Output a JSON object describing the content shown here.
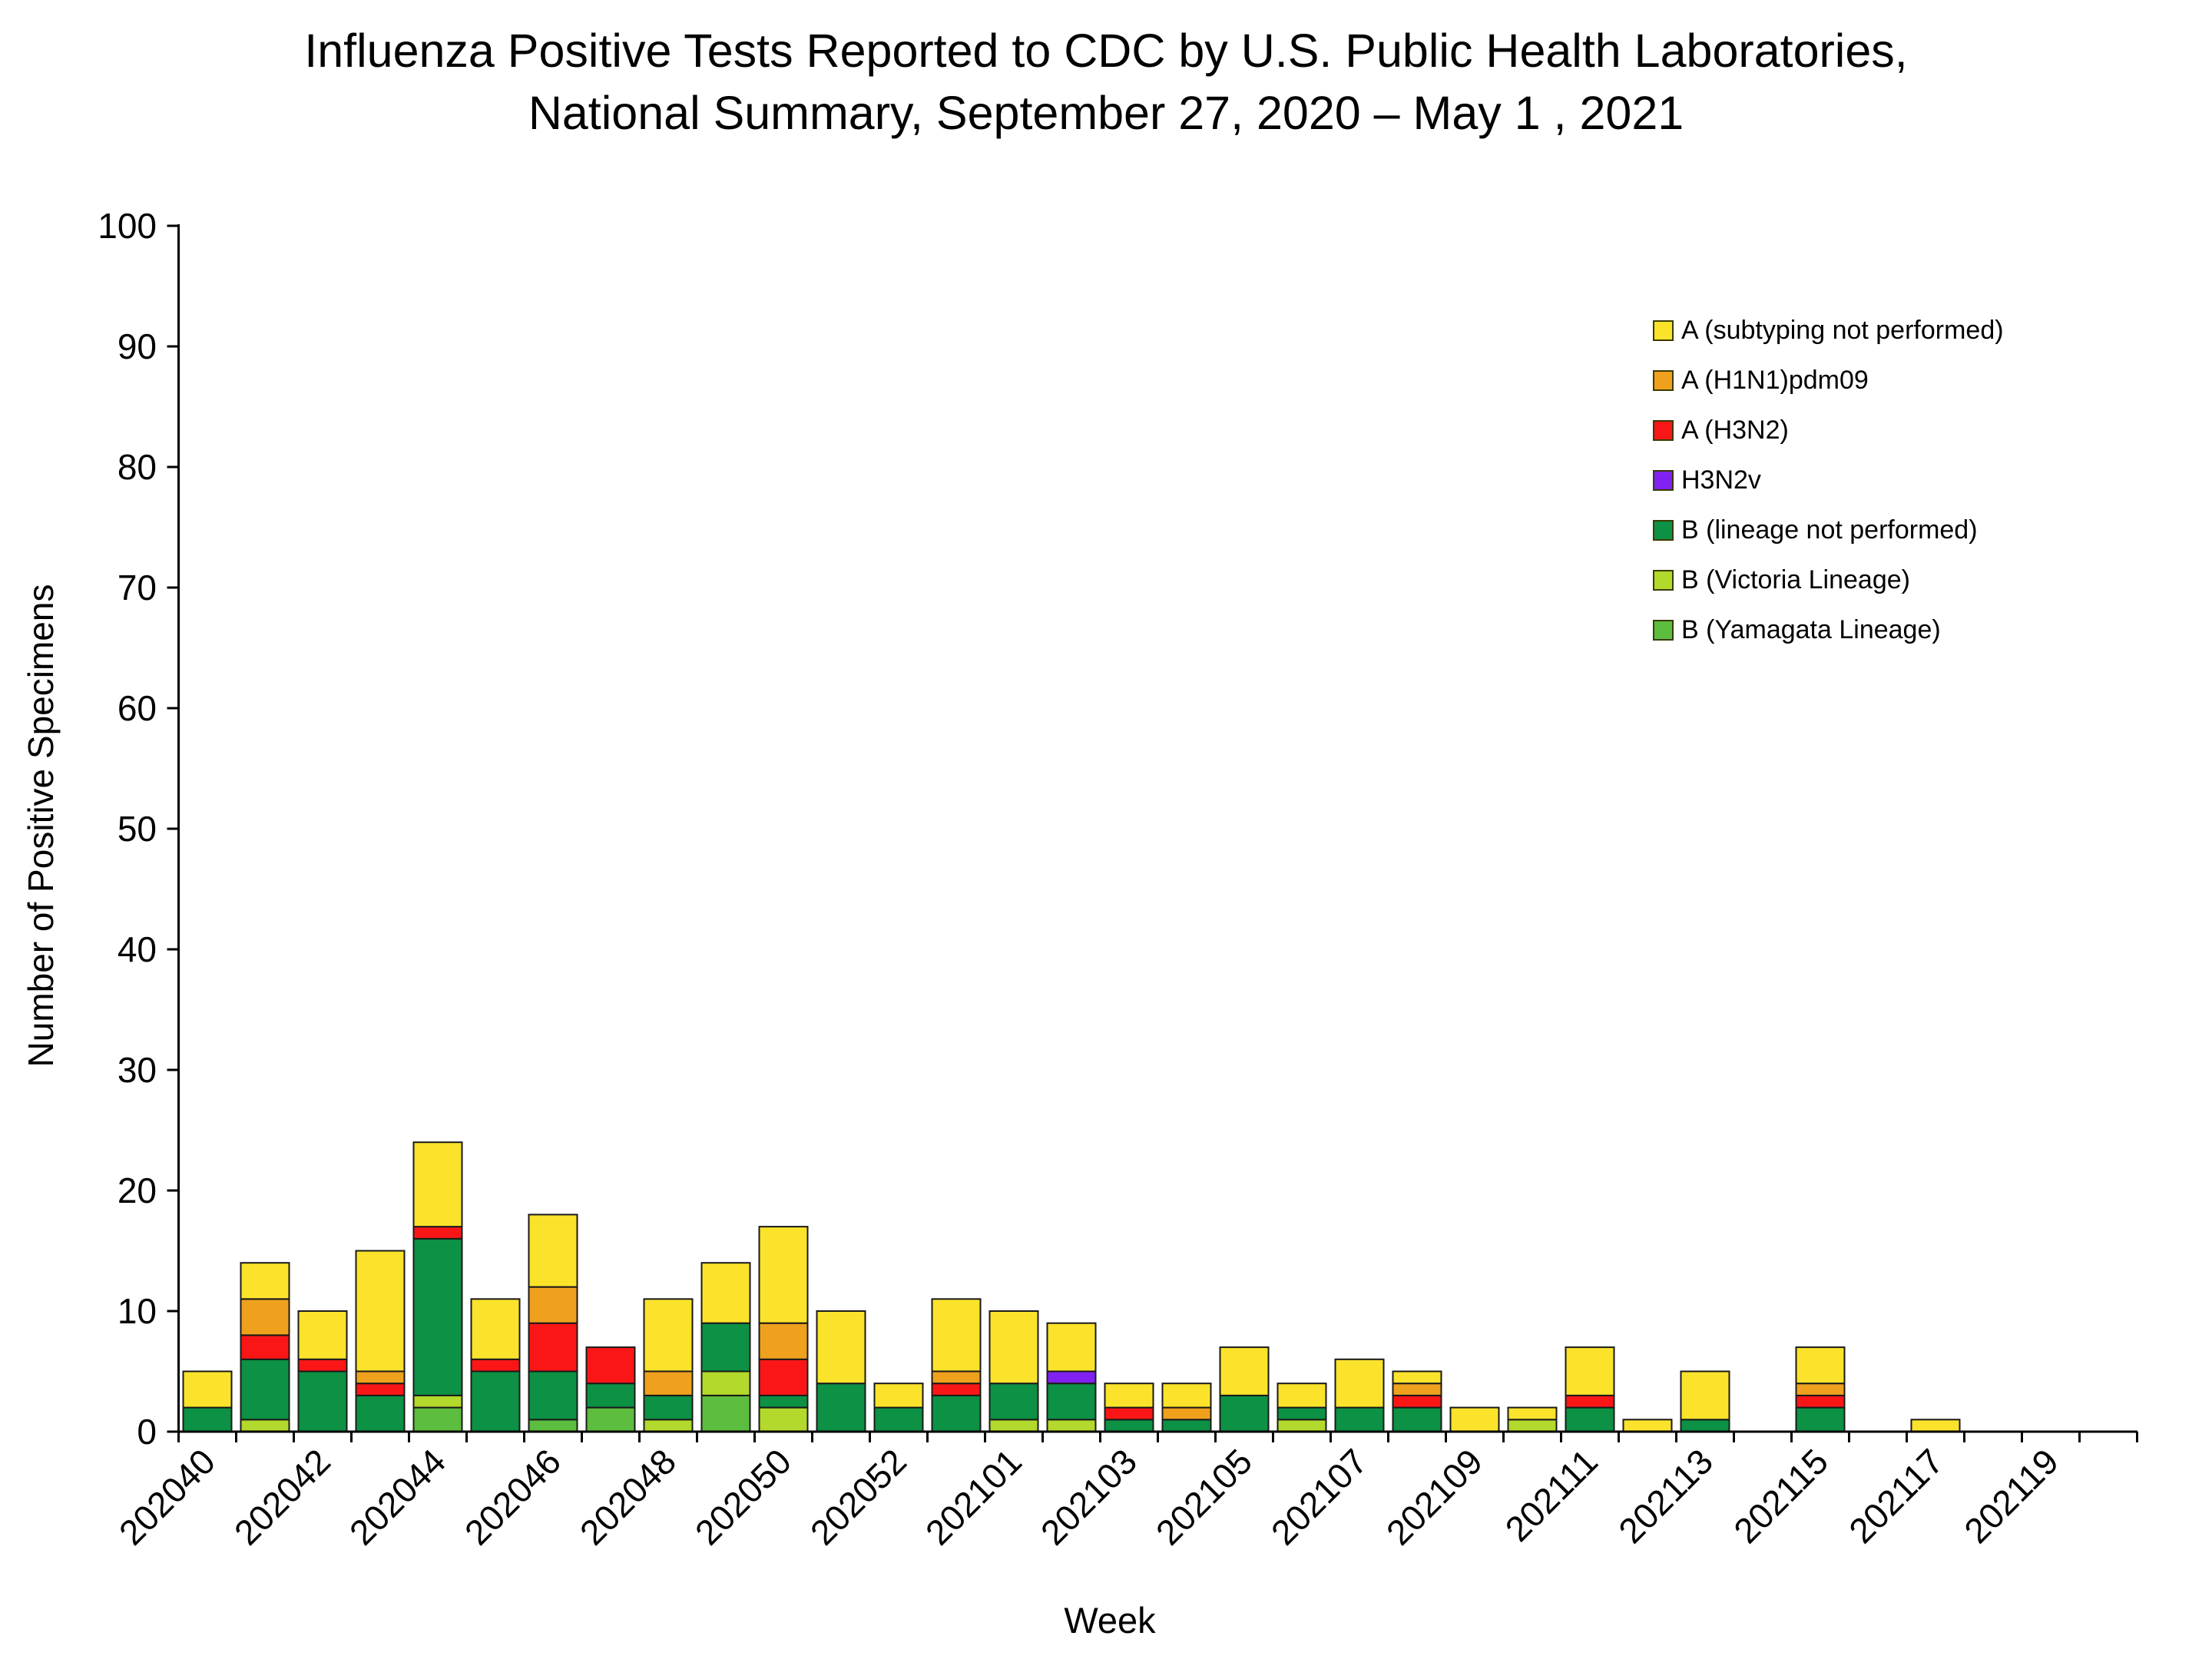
{
  "title": {
    "line1": "Influenza Positive Tests Reported to CDC by U.S. Public Health Laboratories,",
    "line2": "National Summary, September 27, 2020 – May 1 , 2021"
  },
  "chart_data": {
    "type": "bar",
    "stacked": true,
    "title": "Influenza Positive Tests Reported to CDC by U.S. Public Health Laboratories, National Summary, September 27, 2020 – May 1 , 2021",
    "xlabel": "Week",
    "ylabel": "Number of Positive Specimens",
    "ylim": [
      0,
      100
    ],
    "ytick_step": 10,
    "grid": false,
    "legend_position": "upper-right",
    "x_label_every": 2,
    "categories": [
      "202040",
      "202041",
      "202042",
      "202043",
      "202044",
      "202045",
      "202046",
      "202047",
      "202048",
      "202049",
      "202050",
      "202051",
      "202052",
      "202053",
      "202101",
      "202102",
      "202103",
      "202104",
      "202105",
      "202106",
      "202107",
      "202108",
      "202109",
      "202110",
      "202111",
      "202112",
      "202113",
      "202114",
      "202115",
      "202116",
      "202117",
      "202118",
      "202119",
      "202120"
    ],
    "series": [
      {
        "name": "B (Yamagata Lineage)",
        "color": "#5cbd3e",
        "values": [
          0,
          0,
          0,
          0,
          2,
          0,
          1,
          2,
          0,
          3,
          0,
          0,
          0,
          0,
          0,
          0,
          0,
          0,
          0,
          0,
          0,
          0,
          0,
          0,
          0,
          0,
          0,
          0,
          0,
          0,
          0,
          0,
          0,
          0
        ]
      },
      {
        "name": "B (Victoria Lineage)",
        "color": "#b2d92b",
        "values": [
          0,
          1,
          0,
          0,
          1,
          0,
          0,
          0,
          1,
          2,
          2,
          0,
          0,
          0,
          1,
          1,
          0,
          0,
          0,
          1,
          0,
          0,
          0,
          1,
          0,
          0,
          0,
          0,
          0,
          0,
          0,
          0,
          0,
          0
        ]
      },
      {
        "name": "B (lineage not performed)",
        "color": "#0c9145",
        "values": [
          2,
          5,
          5,
          3,
          13,
          5,
          4,
          2,
          2,
          4,
          1,
          4,
          2,
          3,
          3,
          3,
          1,
          1,
          3,
          1,
          2,
          2,
          0,
          0,
          2,
          0,
          1,
          0,
          2,
          0,
          0,
          0,
          0,
          0
        ]
      },
      {
        "name": "H3N2v",
        "color": "#8121f1",
        "values": [
          0,
          0,
          0,
          0,
          0,
          0,
          0,
          0,
          0,
          0,
          0,
          0,
          0,
          0,
          0,
          1,
          0,
          0,
          0,
          0,
          0,
          0,
          0,
          0,
          0,
          0,
          0,
          0,
          0,
          0,
          0,
          0,
          0,
          0
        ]
      },
      {
        "name": "A (H3N2)",
        "color": "#fa1616",
        "values": [
          0,
          2,
          1,
          1,
          1,
          1,
          4,
          3,
          0,
          0,
          3,
          0,
          0,
          1,
          0,
          0,
          1,
          0,
          0,
          0,
          0,
          1,
          0,
          0,
          1,
          0,
          0,
          0,
          1,
          0,
          0,
          0,
          0,
          0
        ]
      },
      {
        "name": "A (H1N1)pdm09",
        "color": "#efa11d",
        "values": [
          0,
          3,
          0,
          1,
          0,
          0,
          3,
          0,
          2,
          0,
          3,
          0,
          0,
          1,
          0,
          0,
          0,
          1,
          0,
          0,
          0,
          1,
          0,
          0,
          0,
          0,
          0,
          0,
          1,
          0,
          0,
          0,
          0,
          0
        ]
      },
      {
        "name": "A (subtyping not performed)",
        "color": "#fbe32c",
        "values": [
          3,
          3,
          4,
          10,
          7,
          5,
          6,
          0,
          6,
          5,
          8,
          6,
          2,
          6,
          6,
          4,
          2,
          2,
          4,
          2,
          4,
          1,
          2,
          1,
          4,
          1,
          4,
          0,
          3,
          0,
          1,
          0,
          0,
          0
        ]
      }
    ],
    "legend_order_top_to_bottom": [
      "A (subtyping not performed)",
      "A (H1N1)pdm09",
      "A (H3N2)",
      "H3N2v",
      "B (lineage not performed)",
      "B (Victoria Lineage)",
      "B (Yamagata Lineage)"
    ]
  }
}
